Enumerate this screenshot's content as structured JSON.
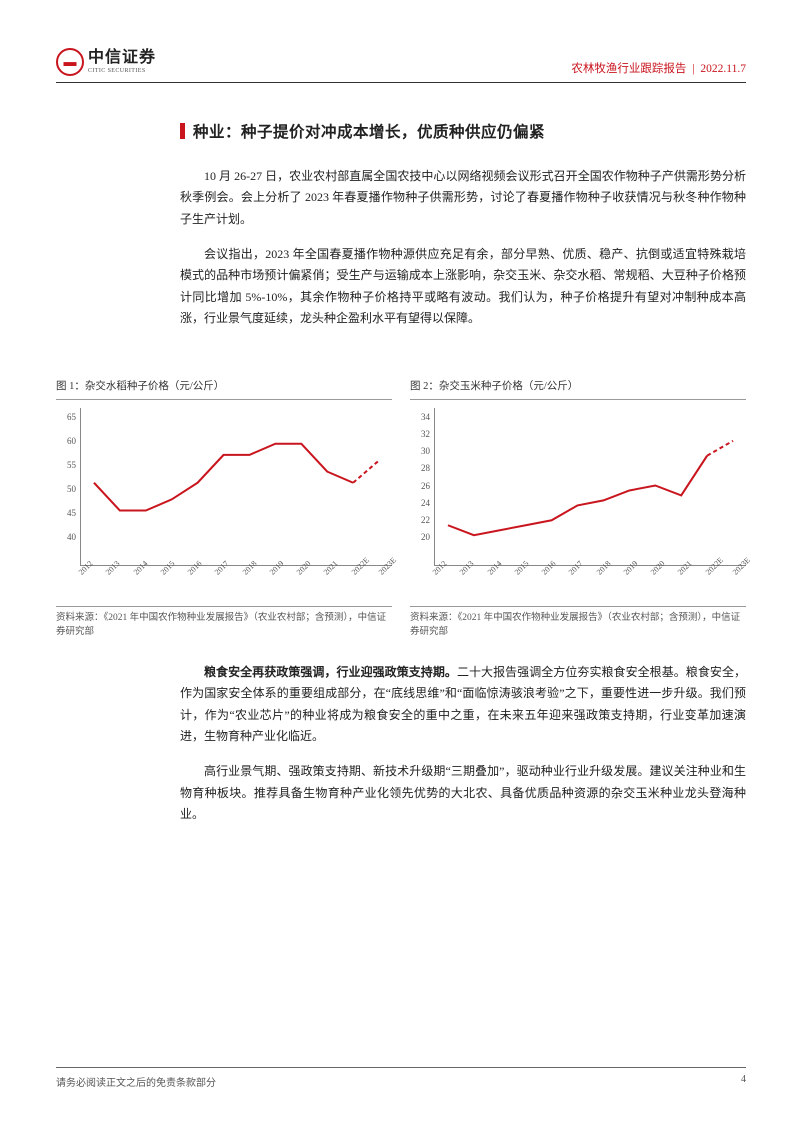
{
  "header": {
    "logo_mark": "▬",
    "logo_cn": "中信证券",
    "logo_en": "CITIC SECURITIES",
    "report_type": "农林牧渔行业跟踪报告",
    "date": "2022.11.7"
  },
  "section": {
    "title": "种业：种子提价对冲成本增长，优质种供应仍偏紧"
  },
  "paragraphs": {
    "p1": "10 月 26-27 日，农业农村部直属全国农技中心以网络视频会议形式召开全国农作物种子产供需形势分析秋季例会。会上分析了 2023 年春夏播作物种子供需形势，讨论了春夏播作物种子收获情况与秋冬种作物种子生产计划。",
    "p2": "会议指出，2023 年全国春夏播作物种源供应充足有余，部分早熟、优质、稳产、抗倒或适宜特殊栽培模式的品种市场预计偏紧俏；受生产与运输成本上涨影响，杂交玉米、杂交水稻、常规稻、大豆种子价格预计同比增加 5%-10%，其余作物种子价格持平或略有波动。我们认为，种子价格提升有望对冲制种成本高涨，行业景气度延续，龙头种企盈利水平有望得以保障。",
    "p3_lead": "粮食安全再获政策强调，行业迎强政策支持期。",
    "p3_rest": "二十大报告强调全方位夯实粮食安全根基。粮食安全，作为国家安全体系的重要组成部分，在“底线思维”和“面临惊涛骇浪考验”之下，重要性进一步升级。我们预计，作为“农业芯片”的种业将成为粮食安全的重中之重，在未来五年迎来强政策支持期，行业变革加速演进，生物育种产业化临近。",
    "p4": "高行业景气期、强政策支持期、新技术升级期“三期叠加”，驱动种业行业升级发展。建议关注种业和生物育种板块。推荐具备生物育种产业化领先优势的大北农、具备优质品种资源的杂交玉米种业龙头登海种业。"
  },
  "chart1": {
    "title": "图 1：杂交水稻种子价格（元/公斤）",
    "type": "line",
    "x_labels": [
      "2012",
      "2013",
      "2014",
      "2015",
      "2016",
      "2017",
      "2018",
      "2019",
      "2020",
      "2021",
      "2022E",
      "2023E"
    ],
    "values": [
      53,
      48,
      48,
      50,
      53,
      58,
      58,
      60,
      60,
      55,
      53,
      57
    ],
    "solid_until_index": 10,
    "ylim": [
      40,
      65
    ],
    "yticks": [
      40,
      45,
      50,
      55,
      60,
      65
    ],
    "line_color": "#c9151e",
    "line_width": 2,
    "dash_color": "#c9151e",
    "background_color": "#ffffff",
    "source": "资料来源：《2021 年中国农作物种业发展报告》（农业农村部；含预测），中信证券研究部"
  },
  "chart2": {
    "title": "图 2：杂交玉米种子价格（元/公斤）",
    "type": "line",
    "x_labels": [
      "2012",
      "2013",
      "2014",
      "2015",
      "2016",
      "2017",
      "2018",
      "2019",
      "2020",
      "2021",
      "2022E",
      "2023E"
    ],
    "values": [
      23,
      22,
      22.5,
      23,
      23.5,
      25,
      25.5,
      26.5,
      27,
      26,
      30,
      31.5
    ],
    "solid_until_index": 10,
    "ylim": [
      20,
      34
    ],
    "yticks": [
      20,
      22,
      24,
      26,
      28,
      30,
      32,
      34
    ],
    "line_color": "#c9151e",
    "line_width": 2,
    "dash_color": "#c9151e",
    "background_color": "#ffffff",
    "source": "资料来源：《2021 年中国农作物种业发展报告》（农业农村部；含预测），中信证券研究部"
  },
  "footer": {
    "disclaimer": "请务必阅读正文之后的免责条款部分",
    "page": "4"
  }
}
